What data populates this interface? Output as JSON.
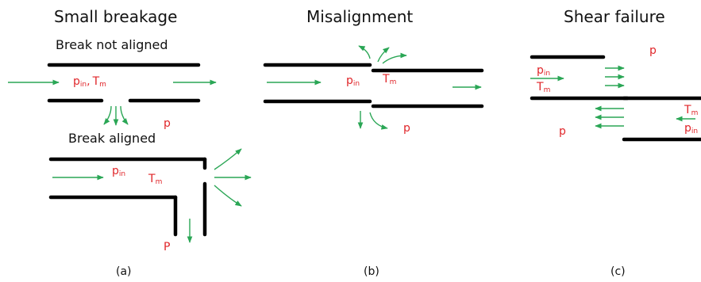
{
  "colors": {
    "pipe": "#000000",
    "flow": "#2aa655",
    "variable": "#e0262a",
    "text": "#111111"
  },
  "panel_a": {
    "title": "Small breakage",
    "case_not_aligned": "Break not aligned",
    "case_aligned": "Break aligned",
    "pressure_in": "p",
    "pressure_in_sub": "in",
    "temperature": "T",
    "temperature_sub": "m",
    "separator": ",",
    "outside_pressure": "p",
    "outside_pressure_2": "P",
    "caption": "(a)"
  },
  "panel_b": {
    "title": "Misalignment",
    "pressure_in": "p",
    "pressure_in_sub": "in",
    "temperature": "T",
    "temperature_sub": "m",
    "outside_pressure": "p",
    "caption": "(b)"
  },
  "panel_c": {
    "title": "Shear failure",
    "pressure_in": "p",
    "pressure_in_sub": "in",
    "temperature": "T",
    "temperature_sub": "m",
    "outside_pressure": "p",
    "outside_pressure_2": "p",
    "pressure_in_right": "p",
    "pressure_in_right_sub": "in",
    "temperature_right": "T",
    "temperature_right_sub": "m",
    "caption": "(c)"
  }
}
